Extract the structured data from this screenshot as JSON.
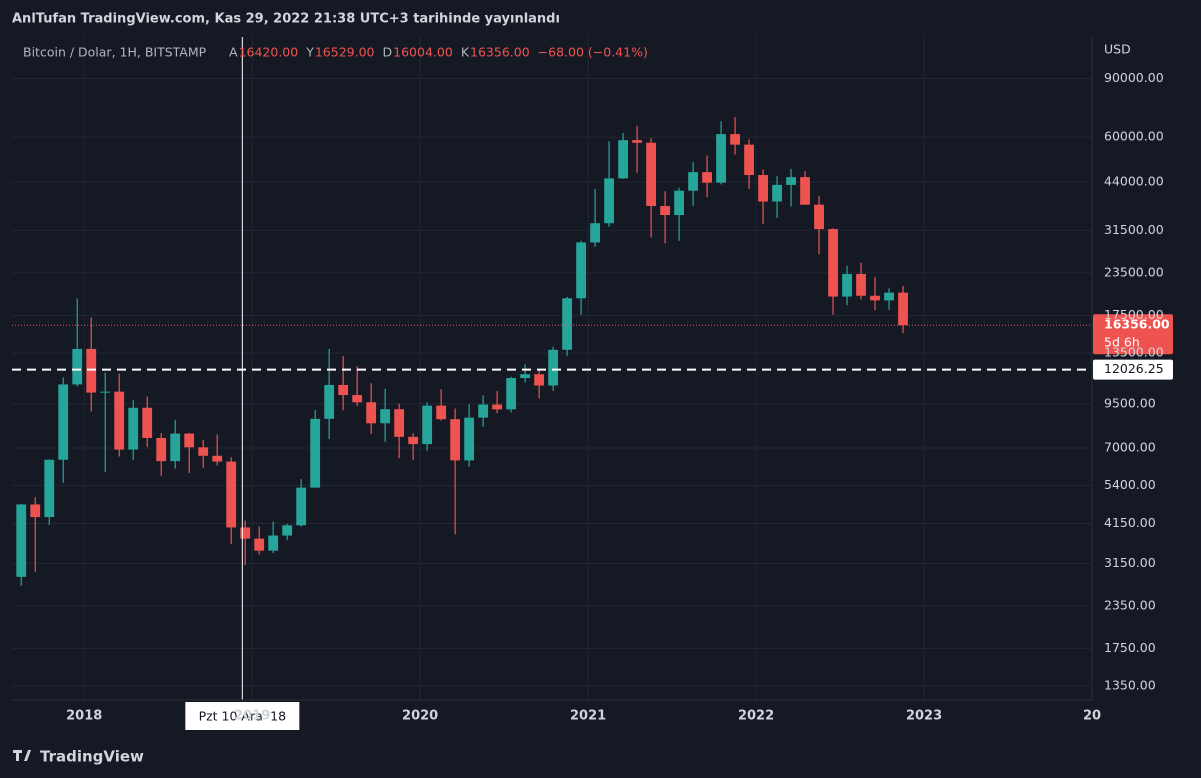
{
  "header": {
    "title": "AnlTufan TradingView.com, Kas 29, 2022 21:38 UTC+3 tarihinde yayınlandı"
  },
  "footer": {
    "logo": "TradingView"
  },
  "chart_data": {
    "type": "candlestick",
    "symbol": "Bitcoin / Dolar, 1H, BITSTAMP",
    "ohlc_legend": [
      {
        "key": "A",
        "value": "16420.00"
      },
      {
        "key": "Y",
        "value": "16529.00"
      },
      {
        "key": "D",
        "value": "16004.00"
      },
      {
        "key": "K",
        "value": "16356.00"
      }
    ],
    "change": "−68.00 (−0.41%)",
    "currency": "USD",
    "up_color": "#26a69a",
    "down_color": "#ef5350",
    "log_scale": true,
    "grid": true,
    "x": [
      "2017-08",
      "2017-09",
      "2017-10",
      "2017-11",
      "2017-12",
      "2018-01",
      "2018-02",
      "2018-03",
      "2018-04",
      "2018-05",
      "2018-06",
      "2018-07",
      "2018-08",
      "2018-09",
      "2018-10",
      "2018-11",
      "2018-12",
      "2019-01",
      "2019-02",
      "2019-03",
      "2019-04",
      "2019-05",
      "2019-06",
      "2019-07",
      "2019-08",
      "2019-09",
      "2019-10",
      "2019-11",
      "2019-12",
      "2020-01",
      "2020-02",
      "2020-03",
      "2020-04",
      "2020-05",
      "2020-06",
      "2020-07",
      "2020-08",
      "2020-09",
      "2020-10",
      "2020-11",
      "2020-12",
      "2021-01",
      "2021-02",
      "2021-03",
      "2021-04",
      "2021-05",
      "2021-06",
      "2021-07",
      "2021-08",
      "2021-09",
      "2021-10",
      "2021-11",
      "2021-12",
      "2022-01",
      "2022-02",
      "2022-03",
      "2022-04",
      "2022-05",
      "2022-06",
      "2022-07",
      "2022-08",
      "2022-09",
      "2022-10",
      "2022-11"
    ],
    "open": [
      2871,
      4735,
      4340,
      6450,
      10860,
      13880,
      10265,
      10330,
      6920,
      9240,
      7500,
      6390,
      7730,
      7030,
      6630,
      6370,
      4040,
      3740,
      3440,
      3820,
      4100,
      5320,
      8560,
      10820,
      10090,
      9600,
      8300,
      9150,
      7560,
      7190,
      9380,
      8540,
      6420,
      8630,
      9450,
      9140,
      11350,
      11650,
      10780,
      13800,
      19700,
      28990,
      33110,
      45140,
      58800,
      57750,
      37300,
      35040,
      41460,
      47130,
      43820,
      61300,
      57000,
      46200,
      38480,
      43160,
      45530,
      37630,
      31800,
      19940,
      23300,
      20050,
      19420,
      20490
    ],
    "high": [
      4750,
      4980,
      6470,
      11400,
      19666,
      17250,
      11780,
      11700,
      9760,
      9990,
      7760,
      8500,
      7760,
      7400,
      7680,
      6560,
      4240,
      4070,
      4200,
      4140,
      5640,
      9100,
      13880,
      13200,
      12330,
      10950,
      10540,
      9510,
      7750,
      9580,
      10500,
      9200,
      9460,
      10070,
      10380,
      11450,
      12470,
      12080,
      14100,
      19890,
      29300,
      41950,
      58350,
      61780,
      64900,
      59590,
      41300,
      42300,
      50500,
      52920,
      67000,
      69000,
      59100,
      47990,
      45850,
      48200,
      47440,
      40000,
      31980,
      24670,
      25200,
      22800,
      21100,
      21470
    ],
    "low": [
      2700,
      2970,
      4110,
      5500,
      10700,
      9000,
      5920,
      6600,
      6430,
      7040,
      5770,
      6070,
      5880,
      6100,
      6200,
      3600,
      3120,
      3350,
      3380,
      3700,
      4060,
      5320,
      7440,
      9080,
      9350,
      7710,
      7300,
      6520,
      6430,
      6860,
      8450,
      3850,
      6150,
      8110,
      8900,
      8950,
      10990,
      9850,
      10380,
      13220,
      17570,
      28150,
      32300,
      44960,
      47000,
      30000,
      28800,
      29300,
      37330,
      39600,
      43300,
      53250,
      42000,
      32950,
      34320,
      37170,
      37580,
      26700,
      17600,
      18780,
      19540,
      18150,
      18200,
      15480
    ],
    "close": [
      4735,
      4340,
      6450,
      10860,
      13880,
      10265,
      10330,
      6920,
      9240,
      7500,
      6390,
      7730,
      7030,
      6630,
      6370,
      4040,
      3740,
      3440,
      3820,
      4100,
      5320,
      8560,
      10820,
      10090,
      9600,
      8300,
      9150,
      7560,
      7190,
      9380,
      8540,
      6420,
      8630,
      9450,
      9140,
      11350,
      11650,
      10780,
      13800,
      19700,
      28990,
      33110,
      45140,
      58800,
      57750,
      37300,
      35040,
      41460,
      47130,
      43820,
      61300,
      57000,
      46200,
      38480,
      43160,
      45530,
      37630,
      31800,
      19940,
      23300,
      20050,
      19420,
      20490,
      16356
    ],
    "xlim": [
      2017.57,
      2024.0
    ],
    "xticks": [
      2018,
      2019,
      2020,
      2021,
      2022,
      2023,
      {
        "value": 2024,
        "label": "20"
      }
    ],
    "ylim": [
      1225,
      120000
    ],
    "yticks": [
      {
        "value": 90000,
        "label": "90000.00"
      },
      {
        "value": 60000,
        "label": "60000.00"
      },
      {
        "value": 44000,
        "label": "44000.00"
      },
      {
        "value": 31500,
        "label": "31500.00"
      },
      {
        "value": 23500,
        "label": "23500.00"
      },
      {
        "value": 17500,
        "label": "17500.00"
      },
      {
        "value": 13500,
        "label": "13500.00"
      },
      {
        "value": 9500,
        "label": "9500.00"
      },
      {
        "value": 7000,
        "label": "7000.00"
      },
      {
        "value": 5400,
        "label": "5400.00"
      },
      {
        "value": 4150,
        "label": "4150.00"
      },
      {
        "value": 3150,
        "label": "3150.00"
      },
      {
        "value": 2350,
        "label": "2350.00"
      },
      {
        "value": 1750,
        "label": "1750.00"
      },
      {
        "value": 1350,
        "label": "1350.00"
      }
    ],
    "price_line": {
      "value": 16356,
      "label": "16356.00",
      "countdown": "5d 6h"
    },
    "horizontal_line": 12026.25,
    "crosshair": {
      "x": "2018-12-10",
      "label": "Pzt 10 Ara '18"
    }
  }
}
